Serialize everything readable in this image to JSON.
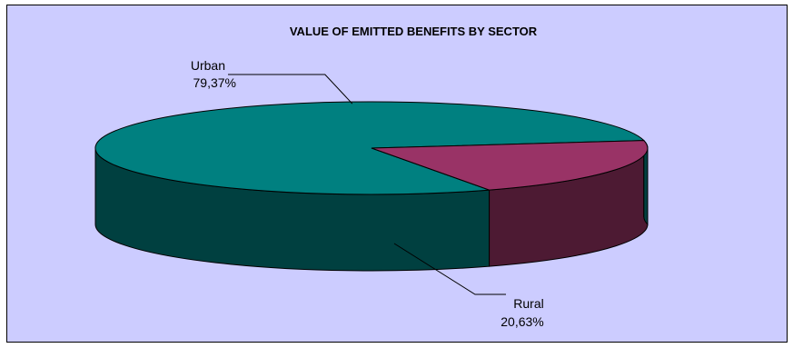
{
  "chart_data": {
    "type": "pie",
    "title": "VALUE OF EMITTED BENEFITS BY SECTOR",
    "categories": [
      "Urban",
      "Rural"
    ],
    "values": [
      79.37,
      20.63
    ],
    "value_labels": [
      "79,37%",
      "20,63%"
    ],
    "colors": {
      "Urban": {
        "top": "#008080",
        "side": "#004040"
      },
      "Rural": {
        "top": "#993366",
        "side": "#4d1a33"
      }
    },
    "background": "#ccccff",
    "legend": "none",
    "style": "3d"
  }
}
